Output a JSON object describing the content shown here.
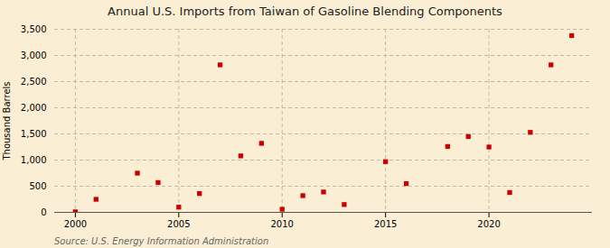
{
  "chart_data": {
    "type": "scatter",
    "title": "Annual U.S. Imports from Taiwan of Gasoline Blending Components",
    "ylabel": "Thousand Barrels",
    "source": "Source: U.S. Energy Information Administration",
    "x": [
      2000,
      2001,
      2003,
      2004,
      2005,
      2006,
      2007,
      2008,
      2009,
      2010,
      2011,
      2012,
      2013,
      2015,
      2016,
      2018,
      2019,
      2020,
      2021,
      2022,
      2023,
      2024
    ],
    "values": [
      10,
      250,
      750,
      570,
      100,
      360,
      2820,
      1080,
      1320,
      60,
      320,
      390,
      150,
      970,
      550,
      1260,
      1450,
      1250,
      380,
      1530,
      2820,
      3380
    ],
    "color": "#cc0000",
    "marker": "square",
    "xlim": [
      1999,
      2025
    ],
    "xticks": [
      2000,
      2005,
      2010,
      2015,
      2020
    ],
    "ylim": [
      0,
      3500
    ],
    "yticks": [
      0,
      500,
      {
        "value": 1000,
        "label": "1,000"
      },
      {
        "value": 1500,
        "label": "1,500"
      },
      {
        "value": 2000,
        "label": "2,000"
      },
      {
        "value": 2500,
        "label": "2,500"
      },
      {
        "value": 3000,
        "label": "3,000"
      },
      {
        "value": 3500,
        "label": "3,500"
      }
    ],
    "grid": true
  }
}
